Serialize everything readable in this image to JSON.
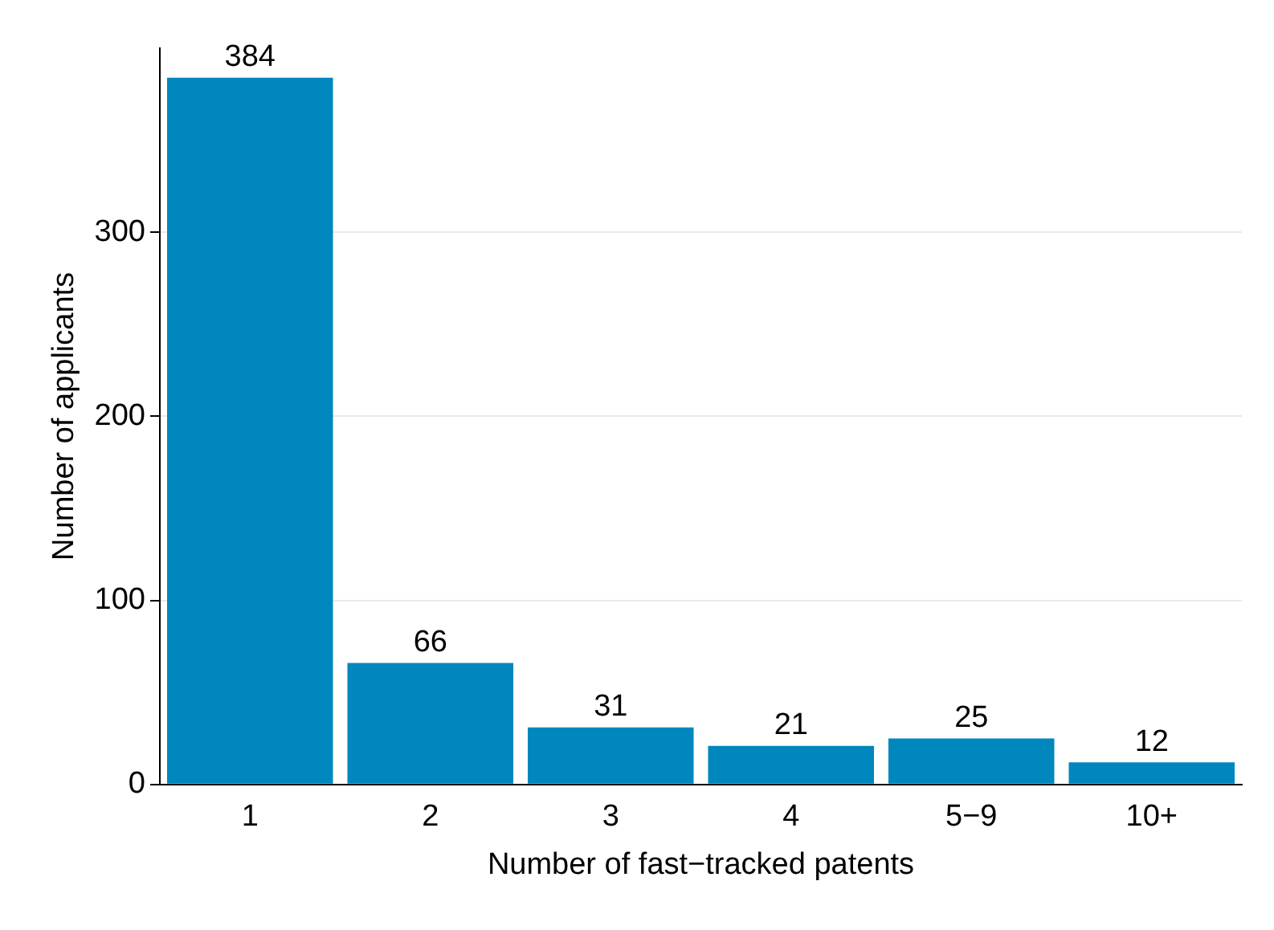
{
  "chart_data": {
    "type": "bar",
    "xlabel": "Number of fast−tracked patents",
    "ylabel": "Number of applicants",
    "categories": [
      "1",
      "2",
      "3",
      "4",
      "5−9",
      "10+"
    ],
    "values": [
      384,
      66,
      31,
      21,
      25,
      12
    ],
    "color": "#0087bd",
    "ylim": [
      0,
      400
    ],
    "yticks": [
      0,
      100,
      200,
      300
    ],
    "grid": "y",
    "data_labels": true,
    "legend": false
  }
}
